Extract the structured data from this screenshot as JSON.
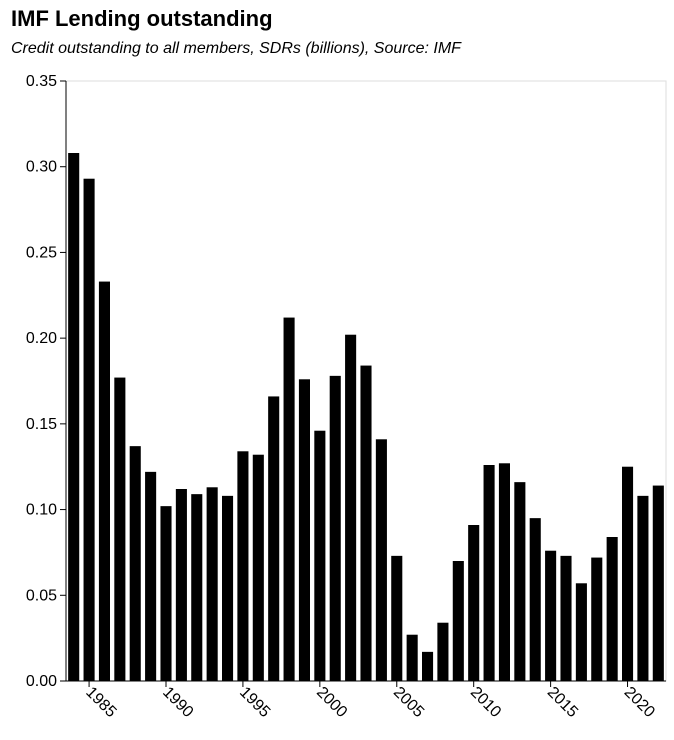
{
  "chart_data": {
    "type": "bar",
    "title": "IMF Lending outstanding",
    "subtitle": "Credit outstanding to all members, SDRs (billions), Source: IMF",
    "xlabel": "",
    "ylabel": "",
    "ylim": [
      0,
      0.35
    ],
    "y_ticks": [
      "0.00",
      "0.05",
      "0.10",
      "0.15",
      "0.20",
      "0.25",
      "0.30",
      "0.35"
    ],
    "x_ticks": [
      "1985",
      "1990",
      "1995",
      "2000",
      "2005",
      "2010",
      "2015",
      "2020"
    ],
    "grid": false,
    "bar_color": "#000000",
    "categories": [
      1984,
      1985,
      1986,
      1987,
      1988,
      1989,
      1990,
      1991,
      1992,
      1993,
      1994,
      1995,
      1996,
      1997,
      1998,
      1999,
      2000,
      2001,
      2002,
      2003,
      2004,
      2005,
      2006,
      2007,
      2008,
      2009,
      2010,
      2011,
      2012,
      2013,
      2014,
      2015,
      2016,
      2017,
      2018,
      2019,
      2020,
      2021,
      2022
    ],
    "values": [
      0.308,
      0.293,
      0.233,
      0.177,
      0.137,
      0.122,
      0.102,
      0.112,
      0.109,
      0.113,
      0.108,
      0.134,
      0.132,
      0.166,
      0.212,
      0.176,
      0.146,
      0.178,
      0.202,
      0.184,
      0.141,
      0.073,
      0.027,
      0.017,
      0.034,
      0.07,
      0.091,
      0.126,
      0.127,
      0.116,
      0.095,
      0.076,
      0.073,
      0.057,
      0.072,
      0.084,
      0.125,
      0.108,
      0.114
    ]
  }
}
